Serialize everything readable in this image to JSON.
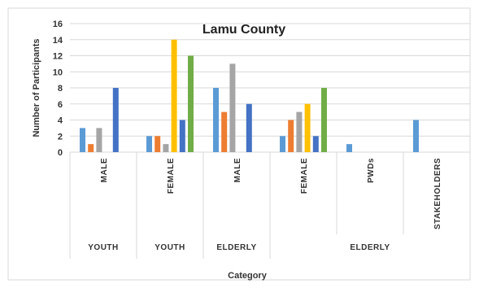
{
  "chart_data": {
    "type": "bar",
    "title": "Lamu County",
    "xlabel": "Category",
    "ylabel": "Number of Participants",
    "ylim": [
      0,
      16
    ],
    "yticks": [
      0,
      2,
      4,
      6,
      8,
      10,
      12,
      14,
      16
    ],
    "grid": true,
    "categories": [
      "MALE",
      "FEMALE",
      "MALE",
      "FEMALE",
      "PWDs",
      "STAKEHOLDERS"
    ],
    "groups": [
      {
        "label": "YOUTH",
        "span": [
          0,
          0
        ]
      },
      {
        "label": "YOUTH",
        "span": [
          1,
          1
        ]
      },
      {
        "label": "ELDERLY",
        "span": [
          2,
          2
        ]
      },
      {
        "label": "ELDERLY",
        "span": [
          3,
          5
        ]
      }
    ],
    "series": [
      {
        "color": "#5B9BD5",
        "values": [
          3,
          2,
          8,
          2,
          1,
          4
        ]
      },
      {
        "color": "#ED7D31",
        "values": [
          1,
          2,
          5,
          4,
          0,
          0
        ]
      },
      {
        "color": "#A5A5A5",
        "values": [
          3,
          1,
          11,
          5,
          0,
          0
        ]
      },
      {
        "color": "#FFC000",
        "values": [
          0,
          14,
          0,
          6,
          0,
          0
        ]
      },
      {
        "color": "#4472C4",
        "values": [
          8,
          4,
          6,
          2,
          0,
          0
        ]
      },
      {
        "color": "#70AD47",
        "values": [
          0,
          12,
          0,
          8,
          0,
          0
        ]
      }
    ]
  }
}
